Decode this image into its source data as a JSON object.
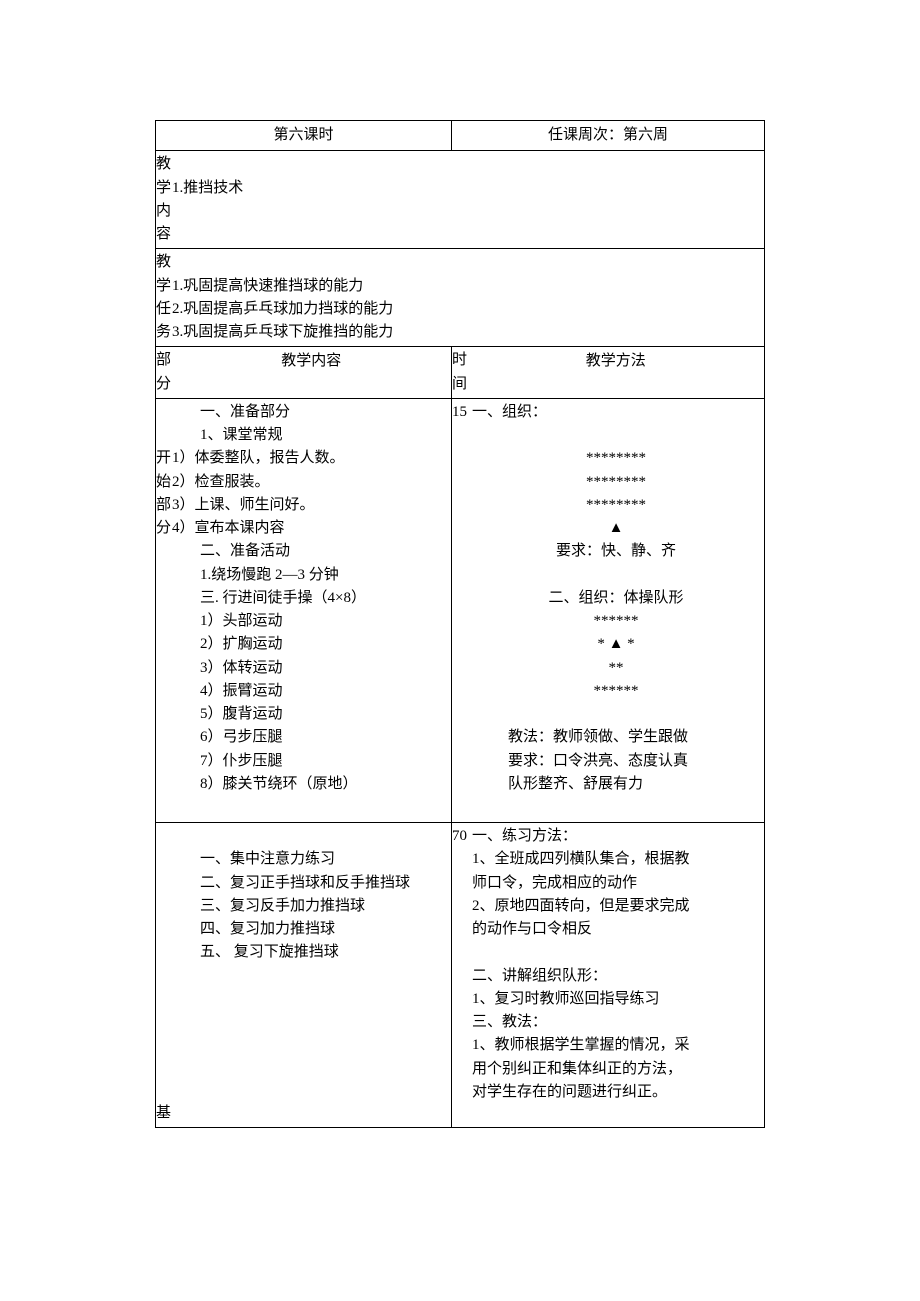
{
  "header": {
    "lesson_title": "第六课时",
    "week_title": "任课周次：第六周"
  },
  "teaching_content": {
    "label_chars": [
      "教",
      "学",
      "内",
      "容"
    ],
    "items": [
      "1.推挡技术"
    ]
  },
  "teaching_tasks": {
    "label_chars": [
      "教",
      "学",
      "任",
      "务"
    ],
    "items": [
      "1.巩固提高快速推挡球的能力",
      "2.巩固提高乒乓球加力挡球的能力",
      "3.巩固提高乒乓球下旋推挡的能力"
    ]
  },
  "column_headers": {
    "section": [
      "部",
      "分"
    ],
    "content": "教学内容",
    "time": [
      "时",
      "间"
    ],
    "method": "教学方法"
  },
  "part1": {
    "section_label_chars": [
      "开",
      "始",
      "部",
      "分"
    ],
    "time": "15",
    "content_lines": [
      {
        "text": "一、准备部分",
        "indent": true
      },
      {
        "text": "1、课堂常规",
        "indent": true
      },
      {
        "text": "1）体委整队，报告人数。",
        "indent": false
      },
      {
        "text": "2）检查服装。",
        "indent": false
      },
      {
        "text": "3）上课、师生问好。",
        "indent": false
      },
      {
        "text": "4）宣布本课内容",
        "indent": false
      },
      {
        "text": "二、准备活动",
        "indent": true
      },
      {
        "text": "1.绕场慢跑 2—3 分钟",
        "indent": true
      },
      {
        "text": "三. 行进间徒手操（4×8）",
        "indent": true
      },
      {
        "text": "1）头部运动",
        "indent": true
      },
      {
        "text": "2）扩胸运动",
        "indent": true
      },
      {
        "text": "3）体转运动",
        "indent": true
      },
      {
        "text": "4）振臂运动",
        "indent": true
      },
      {
        "text": "5）腹背运动",
        "indent": true
      },
      {
        "text": "6）弓步压腿",
        "indent": true
      },
      {
        "text": "7）仆步压腿",
        "indent": true
      },
      {
        "text": "8）膝关节绕环（原地）",
        "indent": true
      }
    ],
    "method_lines": [
      {
        "text": "一、组织：",
        "align": "left"
      },
      {
        "text": "",
        "align": "left"
      },
      {
        "text": "********",
        "align": "center"
      },
      {
        "text": "********",
        "align": "center"
      },
      {
        "text": "********",
        "align": "center"
      },
      {
        "text": "▲",
        "align": "center"
      },
      {
        "text": "要求：快、静、齐",
        "align": "center"
      },
      {
        "text": "",
        "align": "left"
      },
      {
        "text": "二、组织：体操队形",
        "align": "center"
      },
      {
        "text": "******",
        "align": "center"
      },
      {
        "text": "* ▲ *",
        "align": "center"
      },
      {
        "text": "**",
        "align": "center"
      },
      {
        "text": "******",
        "align": "center"
      },
      {
        "text": "",
        "align": "left"
      },
      {
        "text": "教法：教师领做、学生跟做",
        "align": "center-left"
      },
      {
        "text": "要求：口令洪亮、态度认真",
        "align": "center-left"
      },
      {
        "text": "队形整齐、舒展有力",
        "align": "center-left"
      }
    ]
  },
  "part2": {
    "section_label_chars": [
      "基"
    ],
    "time": "70",
    "content_lines": [
      {
        "text": "",
        "indent": true
      },
      {
        "text": "一、集中注意力练习",
        "indent": true
      },
      {
        "text": "二、复习正手挡球和反手推挡球",
        "indent": true
      },
      {
        "text": "三、复习反手加力推挡球",
        "indent": true
      },
      {
        "text": "四、复习加力推挡球",
        "indent": true
      },
      {
        "text": "五、 复习下旋推挡球",
        "indent": true
      }
    ],
    "method_lines": [
      {
        "text": "一、练习方法：",
        "align": "left"
      },
      {
        "text": "1、全班成四列横队集合，根据教",
        "align": "left-pad"
      },
      {
        "text": "师口令，完成相应的动作",
        "align": "left-pad"
      },
      {
        "text": "2、原地四面转向，但是要求完成",
        "align": "left-pad"
      },
      {
        "text": "的动作与口令相反",
        "align": "left-pad"
      },
      {
        "text": "",
        "align": "left"
      },
      {
        "text": "二、讲解组织队形：",
        "align": "left-pad"
      },
      {
        "text": "1、复习时教师巡回指导练习",
        "align": "left-pad"
      },
      {
        "text": "三、教法：",
        "align": "left-pad"
      },
      {
        "text": "1、教师根据学生掌握的情况，采",
        "align": "left-pad"
      },
      {
        "text": "用个别纠正和集体纠正的方法，",
        "align": "left-pad"
      },
      {
        "text": "对学生存在的问题进行纠正。",
        "align": "left-pad"
      }
    ]
  },
  "styling": {
    "font_family": "SimSun",
    "font_size_pt": 11,
    "border_color": "#000000",
    "background_color": "#ffffff",
    "text_color": "#000000"
  }
}
